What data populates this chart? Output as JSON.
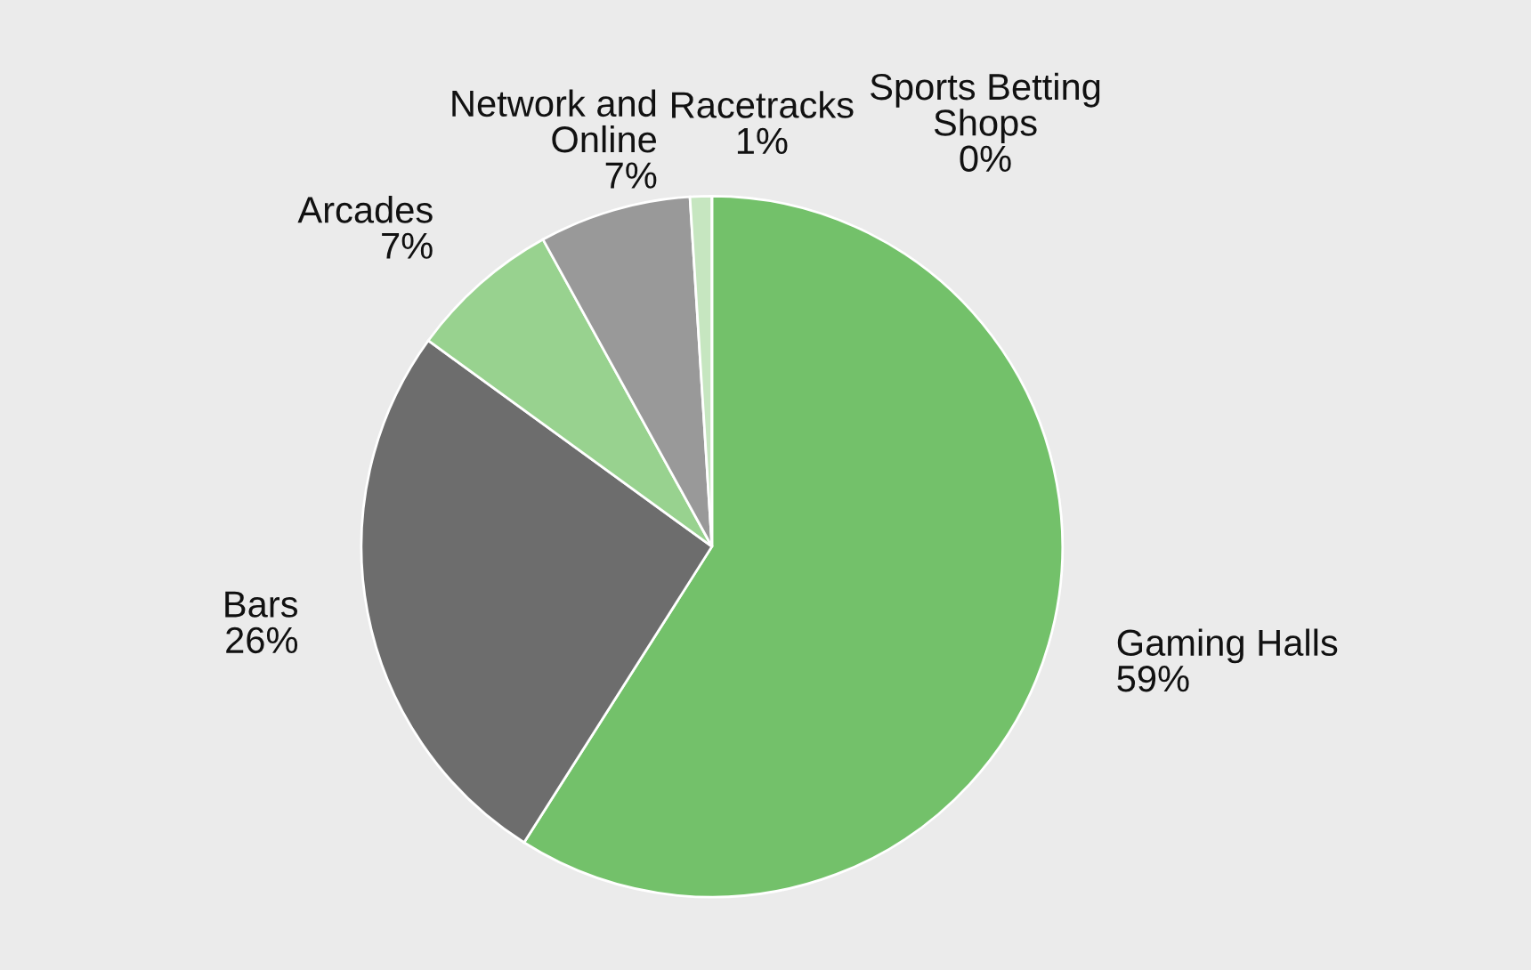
{
  "chart_data": {
    "type": "pie",
    "categories": [
      "Gaming Halls",
      "Bars",
      "Arcades",
      "Network and\nOnline",
      "Racetracks",
      "Sports Betting\nShops"
    ],
    "values": [
      59,
      26,
      7,
      7,
      1,
      0
    ],
    "value_labels": [
      "59%",
      "26%",
      "7%",
      "7%",
      "1%",
      "0%"
    ],
    "colors": [
      "#73c16a",
      "#6d6d6d",
      "#98d28f",
      "#999999",
      "#c6e6c0",
      "#aaaaaa"
    ]
  }
}
